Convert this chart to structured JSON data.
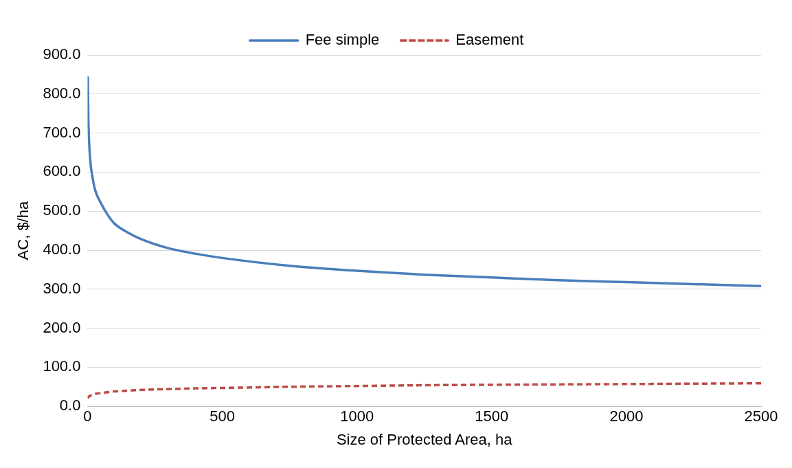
{
  "chart_data": {
    "type": "line",
    "xlabel": "Size of Protected Area, ha",
    "ylabel": "AC, $/ha",
    "xlim": [
      0,
      2500
    ],
    "xticks": [
      0,
      500,
      1000,
      1500,
      2000,
      2500
    ],
    "ylim": [
      0,
      900
    ],
    "yticks": [
      {
        "value": 0,
        "label": "0.0"
      },
      {
        "value": 100,
        "label": "100.0"
      },
      {
        "value": 200,
        "label": "200.0"
      },
      {
        "value": 300,
        "label": "300.0"
      },
      {
        "value": 400,
        "label": "400.0"
      },
      {
        "value": 500,
        "label": "500.0"
      },
      {
        "value": 600,
        "label": "600.0"
      },
      {
        "value": 700,
        "label": "700.0"
      },
      {
        "value": 800,
        "label": "800.0"
      },
      {
        "value": 900,
        "label": "900.0"
      }
    ],
    "grid": "y",
    "legend": "top",
    "marker": "none",
    "series": [
      {
        "name": "Fee simple",
        "color": "#4a7ebb",
        "line_style": "solid",
        "x": [
          1,
          3,
          5,
          10,
          20,
          30,
          50,
          75,
          100,
          150,
          200,
          300,
          400,
          500,
          750,
          1000,
          1250,
          1500,
          1750,
          2000,
          2250,
          2500
        ],
        "values": [
          845,
          735,
          690,
          630,
          580,
          550,
          520,
          490,
          468,
          445,
          428,
          405,
          391,
          380,
          360,
          347,
          337,
          330,
          323,
          318,
          313,
          308
        ]
      },
      {
        "name": "Easement",
        "color": "#be4b48",
        "line_style": "dashed",
        "x": [
          1,
          3,
          5,
          10,
          20,
          30,
          50,
          75,
          100,
          150,
          200,
          300,
          400,
          500,
          750,
          1000,
          1250,
          1500,
          1750,
          2000,
          2250,
          2500
        ],
        "values": [
          20,
          23,
          25,
          27,
          30,
          32,
          34,
          36,
          38,
          40,
          42,
          44,
          46,
          47,
          50,
          52,
          54,
          55,
          56,
          57,
          58,
          59
        ]
      }
    ]
  }
}
